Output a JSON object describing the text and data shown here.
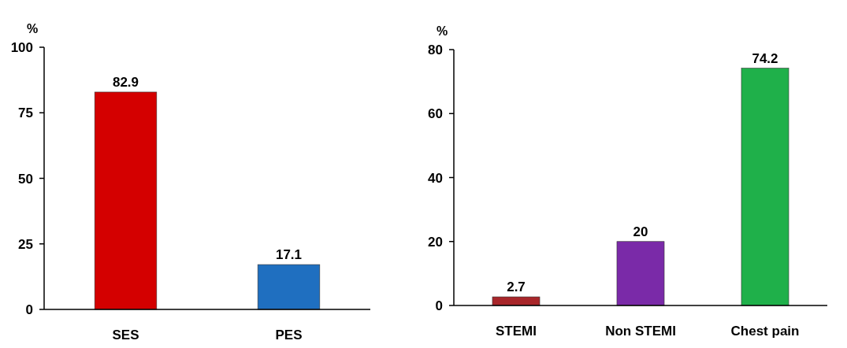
{
  "chart_data": [
    {
      "type": "bar",
      "ylabel": "%",
      "categories": [
        "SES",
        "PES"
      ],
      "values": [
        82.9,
        17.1
      ],
      "colors": [
        "#d40000",
        "#1f6fc0"
      ],
      "ylim": [
        0,
        100
      ],
      "yticks": [
        0,
        25,
        50,
        75,
        100
      ],
      "data_labels": true
    },
    {
      "type": "bar",
      "ylabel": "%",
      "categories": [
        "STEMI",
        "Non STEMI",
        "Chest pain"
      ],
      "values": [
        2.7,
        20,
        74.2
      ],
      "colors": [
        "#a8262a",
        "#7a2aa8",
        "#1fb04a"
      ],
      "ylim": [
        0,
        80
      ],
      "yticks": [
        0,
        20,
        40,
        60,
        80
      ],
      "data_labels": true
    }
  ]
}
